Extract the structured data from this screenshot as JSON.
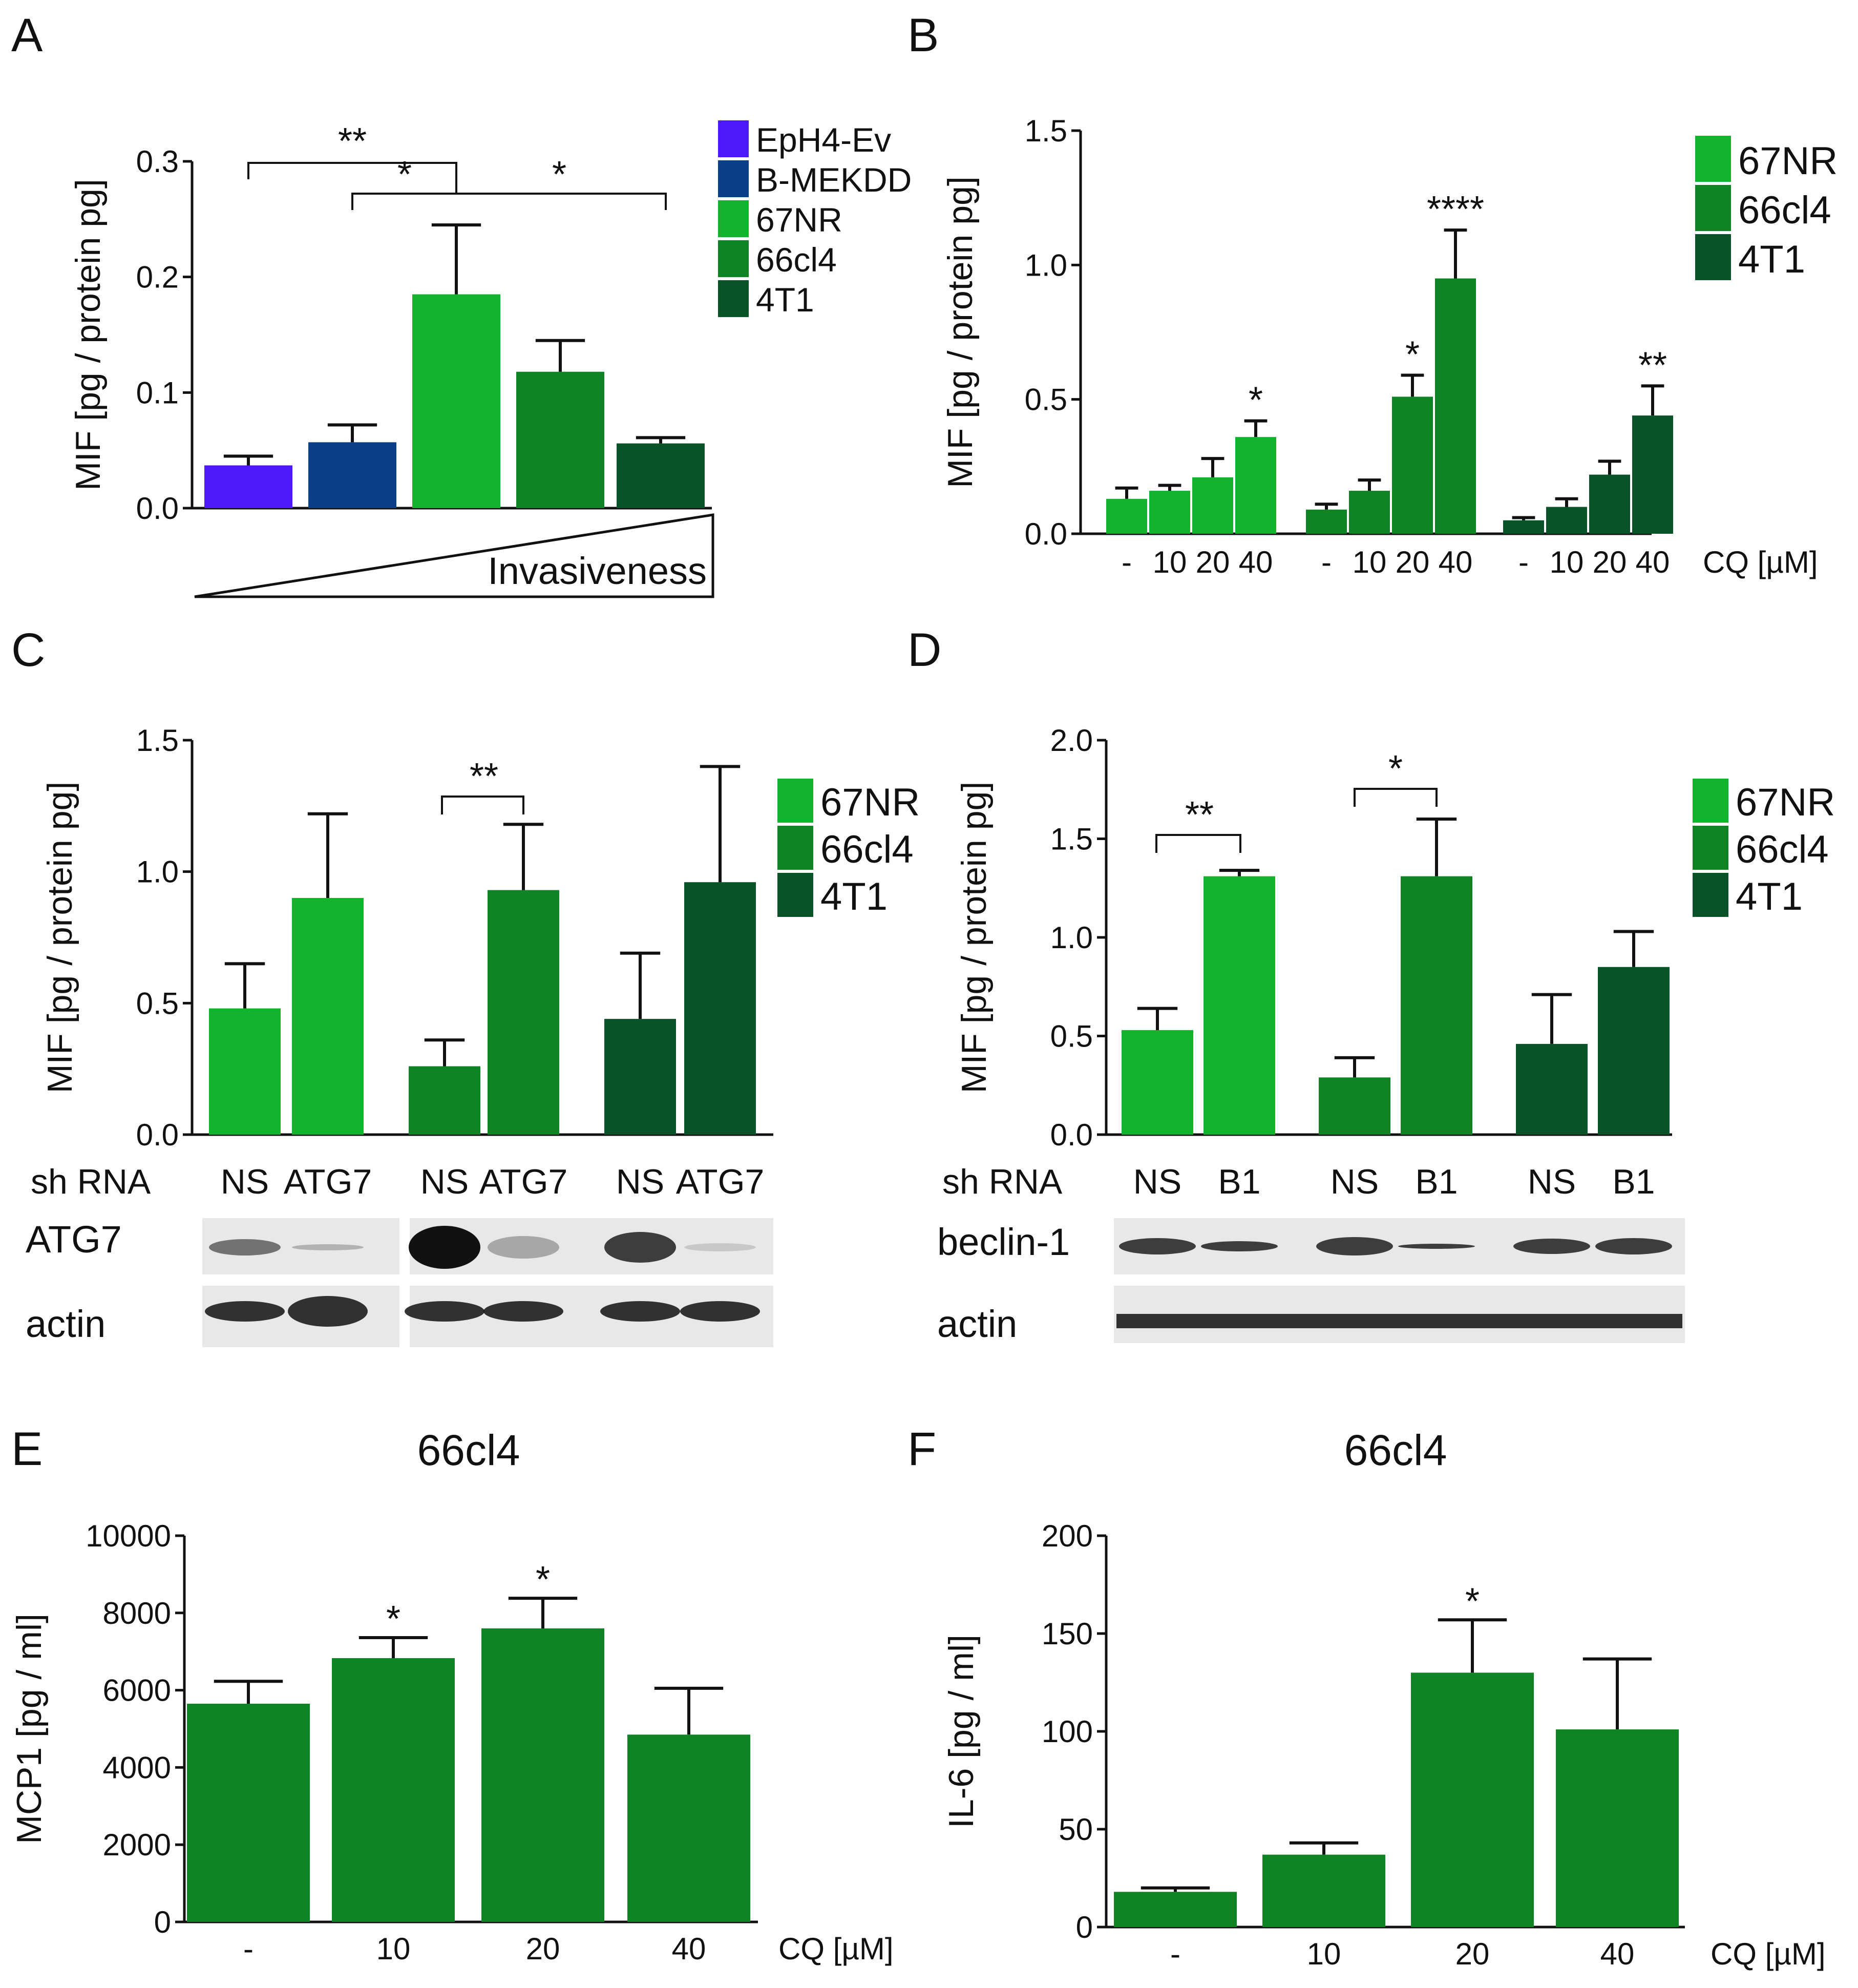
{
  "colors": {
    "purple": "#4b19fa",
    "navy": "#0a3e86",
    "g67": "#12b42e",
    "g66": "#108424",
    "g4t1": "#0a5228",
    "axis": "#111111",
    "blot_bg": "#e8e8e8"
  },
  "panel_letters": [
    "A",
    "B",
    "C",
    "D",
    "E",
    "F"
  ],
  "chart_data": [
    {
      "id": "A",
      "type": "bar",
      "ylabel": "MIF [pg / protein pg]",
      "ylim": [
        0,
        0.3
      ],
      "yticks": [
        "0.0",
        "0.1",
        "0.2",
        "0.3"
      ],
      "categories": [
        "EpH4-Ev",
        "B-MEKDD",
        "67NR",
        "66cl4",
        "4T1"
      ],
      "values": [
        0.037,
        0.057,
        0.185,
        0.118,
        0.056
      ],
      "errors": [
        0.008,
        0.015,
        0.06,
        0.027,
        0.005
      ],
      "legend": [
        "EpH4-Ev",
        "B-MEKDD",
        "67NR",
        "66cl4",
        "4T1"
      ],
      "invasiveness_label": "Invasiveness",
      "significance": [
        "**",
        "*",
        "*"
      ]
    },
    {
      "id": "B",
      "type": "bar",
      "ylabel": "MIF [pg / protein pg]",
      "ylim": [
        0,
        1.5
      ],
      "yticks": [
        "0.0",
        "0.5",
        "1.0",
        "1.5"
      ],
      "series": [
        {
          "name": "67NR",
          "values": [
            0.13,
            0.16,
            0.21,
            0.36
          ],
          "errors": [
            0.04,
            0.02,
            0.07,
            0.06
          ],
          "stars": [
            "",
            "",
            "",
            "*"
          ]
        },
        {
          "name": "66cl4",
          "values": [
            0.09,
            0.16,
            0.51,
            0.95
          ],
          "errors": [
            0.02,
            0.04,
            0.08,
            0.18
          ],
          "stars": [
            "",
            "",
            "*",
            "****"
          ]
        },
        {
          "name": "4T1",
          "values": [
            0.05,
            0.1,
            0.22,
            0.44
          ],
          "errors": [
            0.01,
            0.03,
            0.05,
            0.11
          ],
          "stars": [
            "",
            "",
            "",
            "**"
          ]
        }
      ],
      "dose_labels": [
        "-",
        "10",
        "20",
        "40"
      ],
      "xlabel": "CQ [µM]",
      "legend": [
        "67NR",
        "66cl4",
        "4T1"
      ]
    },
    {
      "id": "C",
      "type": "bar",
      "ylabel": "MIF [pg / protein pg]",
      "ylim": [
        0,
        1.5
      ],
      "yticks": [
        "0.0",
        "0.5",
        "1.0",
        "1.5"
      ],
      "series": [
        {
          "name": "67NR",
          "values": [
            0.48,
            0.9
          ],
          "errors": [
            0.17,
            0.32
          ]
        },
        {
          "name": "66cl4",
          "values": [
            0.26,
            0.93
          ],
          "errors": [
            0.1,
            0.25
          ]
        },
        {
          "name": "4T1",
          "values": [
            0.44,
            0.96
          ],
          "errors": [
            0.25,
            0.44
          ]
        }
      ],
      "conditions": [
        "NS",
        "ATG7"
      ],
      "row_label": "sh RNA",
      "blot_labels": [
        "ATG7",
        "actin"
      ],
      "significance": [
        "**"
      ],
      "legend": [
        "67NR",
        "66cl4",
        "4T1"
      ]
    },
    {
      "id": "D",
      "type": "bar",
      "ylabel": "MIF [pg / protein pg]",
      "ylim": [
        0,
        2.0
      ],
      "yticks": [
        "0.0",
        "0.5",
        "1.0",
        "1.5",
        "2.0"
      ],
      "series": [
        {
          "name": "67NR",
          "values": [
            0.53,
            1.31
          ],
          "errors": [
            0.11,
            0.03
          ]
        },
        {
          "name": "66cl4",
          "values": [
            0.29,
            1.31
          ],
          "errors": [
            0.1,
            0.29
          ]
        },
        {
          "name": "4T1",
          "values": [
            0.46,
            0.85
          ],
          "errors": [
            0.25,
            0.18
          ]
        }
      ],
      "conditions": [
        "NS",
        "B1"
      ],
      "row_label": "sh RNA",
      "blot_labels": [
        "beclin-1",
        "actin"
      ],
      "significance": [
        "**",
        "*"
      ],
      "legend": [
        "67NR",
        "66cl4",
        "4T1"
      ]
    },
    {
      "id": "E",
      "type": "bar",
      "title": "66cl4",
      "ylabel": "MCP1 [pg / ml]",
      "ylim": [
        0,
        10000
      ],
      "yticks": [
        "0",
        "2000",
        "4000",
        "6000",
        "8000",
        "10000"
      ],
      "categories": [
        "-",
        "10",
        "20",
        "40"
      ],
      "values": [
        5650,
        6830,
        7600,
        4850
      ],
      "errors": [
        580,
        530,
        780,
        1200
      ],
      "stars": [
        "",
        "*",
        "*",
        ""
      ],
      "xlabel": "CQ [µM]"
    },
    {
      "id": "F",
      "type": "bar",
      "title": "66cl4",
      "ylabel": "IL-6 [pg / ml]",
      "ylim": [
        0,
        200
      ],
      "yticks": [
        "0",
        "50",
        "100",
        "150",
        "200"
      ],
      "categories": [
        "-",
        "10",
        "20",
        "40"
      ],
      "values": [
        18,
        37,
        130,
        101
      ],
      "errors": [
        2,
        6,
        27,
        36
      ],
      "stars": [
        "",
        "",
        "*",
        ""
      ],
      "xlabel": "CQ [µM]"
    }
  ]
}
